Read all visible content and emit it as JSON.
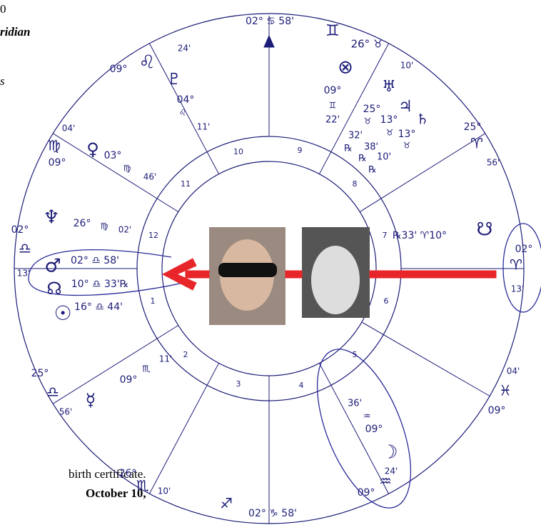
{
  "notes": [
    "0",
    "ridian",
    "s",
    "birth certificate.",
    "October 10,"
  ],
  "houses": [
    "10",
    "9",
    "8",
    "7",
    "6",
    "5",
    "4",
    "3",
    "2",
    "1",
    "12",
    "11"
  ],
  "labels": [
    "02° ♋ 58'",
    "♊",
    "26° ♉",
    "10'",
    "⊗",
    "09°",
    "♊",
    "22'",
    "♅",
    "♃",
    "♄",
    "25°",
    "♉",
    "13°",
    "♉",
    "13°",
    "♉",
    "32'",
    "℞",
    "38'",
    "℞",
    "10'",
    "℞",
    "25°",
    "♈",
    "56'",
    "09°",
    "♌",
    "24'",
    "♇",
    "04°",
    "♌",
    "11'",
    "04'",
    "♍",
    "09°",
    "♀",
    "03°",
    "♍",
    "46'",
    "♆",
    "26°",
    "♍",
    "02'",
    "02°",
    "♎",
    "13'",
    "♂",
    "02° ♎ 58'",
    "☊",
    "10° ♎ 33'℞",
    "☉",
    "16° ♎ 44'",
    "25°",
    "♎",
    "56'",
    "11'",
    "09°",
    "♏",
    "☿",
    "26°",
    "♏",
    "10'",
    "♐",
    "02° ♑ 58'",
    "24'",
    "09°",
    "♒",
    "☽",
    "36'",
    "♒",
    "09°",
    "04'",
    "♓",
    "09°",
    "℞33' ♈10°",
    "☋",
    "02°",
    "♈",
    "13'"
  ]
}
